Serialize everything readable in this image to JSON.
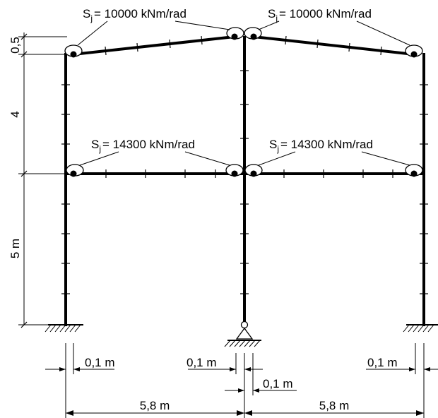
{
  "joints": {
    "roof_left": {
      "s_letter": "S",
      "s_sub": "j",
      "value_text": "= 10000 kNm/rad"
    },
    "roof_right": {
      "s_letter": "S",
      "s_sub": "j",
      "value_text": "= 10000 kNm/rad"
    },
    "floor_left": {
      "s_letter": "S",
      "s_sub": "j",
      "value_text": "= 14300 kNm/rad"
    },
    "floor_right": {
      "s_letter": "S",
      "s_sub": "j",
      "value_text": "= 14300 kNm/rad"
    }
  },
  "dimensions": {
    "height_roof_rise": "0,5",
    "height_upper": "4",
    "height_lower": "5 m",
    "span_left": "5,8 m",
    "span_right": "5,8 m",
    "offset_left": "0,1 m",
    "offset_middle_top": "0,1 m",
    "offset_middle_bottom": "0,1 m",
    "offset_right": "0,1 m"
  }
}
